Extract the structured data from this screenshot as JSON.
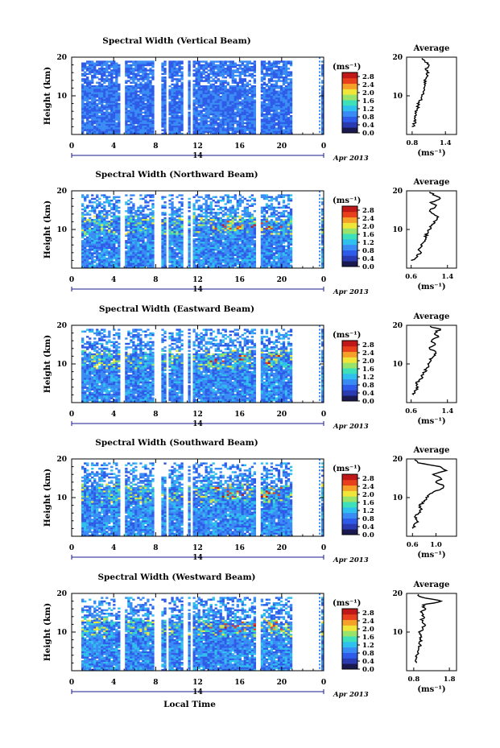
{
  "chart_data": [
    {
      "type": "heatmap",
      "title": "Spectral Width (Vertical Beam)",
      "ylabel": "Height (km)",
      "x_ticks": [
        "0",
        "4",
        "8",
        "12",
        "16",
        "20",
        "0"
      ],
      "y_ticks": [
        "20",
        "10"
      ],
      "ylim": [
        0,
        20
      ],
      "day_label": "14",
      "date_label": "Apr 2013",
      "colorbar": {
        "unit": "(ms⁻¹)",
        "ticks": [
          "2.8",
          "2.4",
          "2.0",
          "1.6",
          "1.2",
          "0.8",
          "0.4",
          "0.0"
        ],
        "range": [
          0.0,
          3.0
        ]
      },
      "average": {
        "title": "Average",
        "xlabel": "(ms⁻¹)",
        "x_ticks": [
          "0.8",
          "1.4"
        ],
        "y_ticks": [
          "20",
          "10"
        ],
        "xlim": [
          0.7,
          1.6
        ],
        "profile_height_km": [
          2,
          3,
          4,
          5,
          6,
          7,
          8,
          9,
          10,
          11,
          12,
          13,
          14,
          15,
          16,
          17,
          18,
          19,
          20
        ],
        "profile_value": [
          0.82,
          0.84,
          0.86,
          0.85,
          0.88,
          0.9,
          0.92,
          0.95,
          0.98,
          1.0,
          1.02,
          1.04,
          1.02,
          1.06,
          1.08,
          1.05,
          1.1,
          1.02,
          0.98
        ]
      }
    },
    {
      "type": "heatmap",
      "title": "Spectral Width (Northward Beam)",
      "ylabel": "Height (km)",
      "x_ticks": [
        "0",
        "4",
        "8",
        "12",
        "16",
        "20",
        "0"
      ],
      "y_ticks": [
        "20",
        "10"
      ],
      "ylim": [
        0,
        20
      ],
      "day_label": "14",
      "date_label": "Apr 2013",
      "colorbar": {
        "unit": "(ms⁻¹)",
        "ticks": [
          "2.8",
          "2.4",
          "2.0",
          "1.6",
          "1.2",
          "0.8",
          "0.4",
          "0.0"
        ],
        "range": [
          0.0,
          3.0
        ]
      },
      "average": {
        "title": "Average",
        "xlabel": "(ms⁻¹)",
        "x_ticks": [
          "0.6",
          "1.4"
        ],
        "y_ticks": [
          "20",
          "10"
        ],
        "xlim": [
          0.5,
          1.6
        ],
        "profile_height_km": [
          2,
          3,
          4,
          5,
          6,
          7,
          8,
          9,
          10,
          11,
          12,
          13,
          14,
          15,
          16,
          17,
          18,
          19,
          20
        ],
        "profile_value": [
          0.62,
          0.72,
          0.8,
          0.78,
          0.82,
          0.88,
          0.92,
          0.95,
          1.0,
          1.05,
          1.12,
          1.2,
          1.08,
          1.02,
          1.15,
          1.05,
          1.25,
          1.1,
          0.95
        ]
      }
    },
    {
      "type": "heatmap",
      "title": "Spectral Width (Eastward Beam)",
      "ylabel": "Height (km)",
      "x_ticks": [
        "0",
        "4",
        "8",
        "12",
        "16",
        "20",
        "0"
      ],
      "y_ticks": [
        "20",
        "10"
      ],
      "ylim": [
        0,
        20
      ],
      "day_label": "14",
      "date_label": "Apr 2013",
      "colorbar": {
        "unit": "(ms⁻¹)",
        "ticks": [
          "2.8",
          "2.4",
          "2.0",
          "1.6",
          "1.2",
          "0.8",
          "0.4",
          "0.0"
        ],
        "range": [
          0.0,
          3.0
        ]
      },
      "average": {
        "title": "Average",
        "xlabel": "(ms⁻¹)",
        "x_ticks": [
          "0.6",
          "1.4"
        ],
        "y_ticks": [
          "20",
          "10"
        ],
        "xlim": [
          0.5,
          1.6
        ],
        "profile_height_km": [
          2,
          3,
          4,
          5,
          6,
          7,
          8,
          9,
          10,
          11,
          12,
          13,
          14,
          15,
          16,
          17,
          18,
          19,
          20
        ],
        "profile_value": [
          0.65,
          0.7,
          0.75,
          0.72,
          0.8,
          0.85,
          0.9,
          0.95,
          1.0,
          1.02,
          1.1,
          1.15,
          1.0,
          1.12,
          1.05,
          1.2,
          1.1,
          1.25,
          0.9
        ]
      }
    },
    {
      "type": "heatmap",
      "title": "Spectral Width (Southward Beam)",
      "ylabel": "Height (km)",
      "x_ticks": [
        "0",
        "4",
        "8",
        "12",
        "16",
        "20",
        "0"
      ],
      "y_ticks": [
        "20",
        "10"
      ],
      "ylim": [
        0,
        20
      ],
      "day_label": "14",
      "date_label": "Apr 2013",
      "colorbar": {
        "unit": "(ms⁻¹)",
        "ticks": [
          "2.8",
          "2.4",
          "2.0",
          "1.6",
          "1.2",
          "0.8",
          "0.4",
          "0.0"
        ],
        "range": [
          0.0,
          3.0
        ]
      },
      "average": {
        "title": "Average",
        "xlabel": "(ms⁻¹)",
        "x_ticks": [
          "0.6",
          "1.0"
        ],
        "y_ticks": [
          "20",
          "10"
        ],
        "xlim": [
          0.5,
          1.35
        ],
        "profile_height_km": [
          2,
          3,
          4,
          5,
          6,
          7,
          8,
          9,
          10,
          11,
          12,
          13,
          14,
          15,
          16,
          17,
          18,
          19,
          20
        ],
        "profile_value": [
          0.62,
          0.65,
          0.68,
          0.64,
          0.7,
          0.75,
          0.72,
          0.8,
          0.85,
          0.9,
          1.05,
          1.15,
          1.0,
          1.1,
          0.95,
          1.2,
          1.05,
          0.7,
          0.6
        ]
      }
    },
    {
      "type": "heatmap",
      "title": "Spectral Width (Westward Beam)",
      "ylabel": "Height (km)",
      "x_ticks": [
        "0",
        "4",
        "8",
        "12",
        "16",
        "20",
        "0"
      ],
      "y_ticks": [
        "20",
        "10"
      ],
      "ylim": [
        0,
        20
      ],
      "day_label": "14",
      "date_label": "Apr 2013",
      "xlabel": "Local Time",
      "colorbar": {
        "unit": "(ms⁻¹)",
        "ticks": [
          "2.8",
          "2.4",
          "2.0",
          "1.6",
          "1.2",
          "0.8",
          "0.4",
          "0.0"
        ],
        "range": [
          0.0,
          3.0
        ]
      },
      "average": {
        "title": "Average",
        "xlabel": "(ms⁻¹)",
        "x_ticks": [
          "0.8",
          "1.8"
        ],
        "y_ticks": [
          "20",
          "10"
        ],
        "xlim": [
          0.6,
          2.0
        ],
        "profile_height_km": [
          2,
          3,
          4,
          5,
          6,
          7,
          8,
          9,
          10,
          11,
          12,
          13,
          14,
          15,
          16,
          17,
          18,
          19,
          20
        ],
        "profile_value": [
          0.85,
          0.9,
          0.88,
          0.92,
          0.95,
          0.98,
          1.0,
          1.02,
          0.98,
          1.05,
          1.1,
          1.02,
          1.08,
          1.0,
          1.12,
          1.05,
          1.6,
          1.0,
          0.9
        ]
      }
    }
  ],
  "colormap": [
    "#1a1a50",
    "#2a3ab0",
    "#2e5be8",
    "#3a8cf5",
    "#30c0ee",
    "#3de0b8",
    "#9ae36a",
    "#f0e63a",
    "#f5a028",
    "#e8401c",
    "#c01818"
  ]
}
